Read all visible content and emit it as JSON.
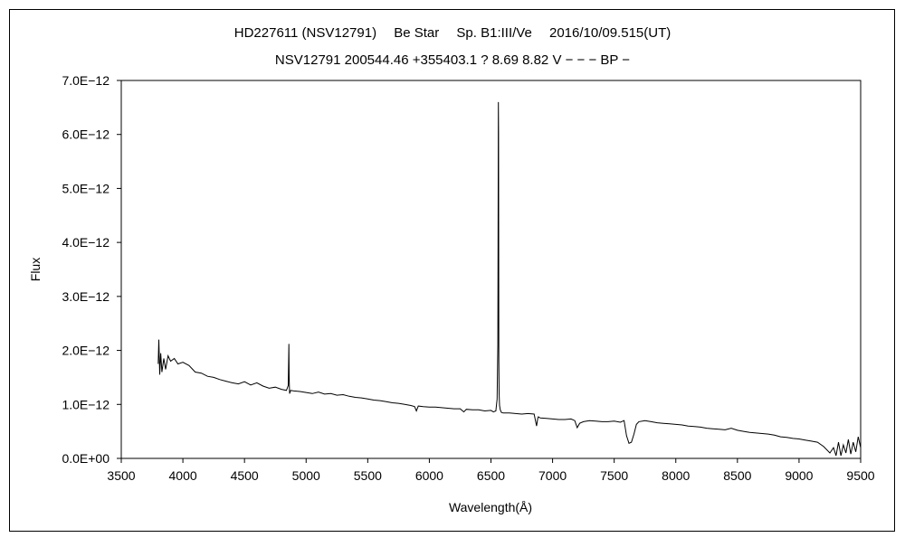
{
  "chart_data": {
    "type": "line",
    "title": "HD227611 (NSV12791)　 Be Star　 Sp. B1:III/Ve　 2016/10/09.515(UT)",
    "subtitle": "NSV12791 200544.46 +355403.1 ? 8.69 8.82 V − − − BP −",
    "xlabel": "Wavelength(Å)",
    "ylabel": "Flux",
    "xlim": [
      3500,
      9500
    ],
    "ylim": [
      0,
      7e-12
    ],
    "x_ticks": [
      3500,
      4000,
      4500,
      5000,
      5500,
      6000,
      6500,
      7000,
      7500,
      8000,
      8500,
      9000,
      9500
    ],
    "x_tick_labels": [
      "3500",
      "4000",
      "4500",
      "5000",
      "5500",
      "6000",
      "6500",
      "7000",
      "7500",
      "8000",
      "8500",
      "9000",
      "9500"
    ],
    "y_ticks": [
      0,
      1e-12,
      2e-12,
      3e-12,
      4e-12,
      5e-12,
      6e-12,
      7e-12
    ],
    "y_tick_labels": [
      "0.0E+00",
      "1.0E−12",
      "2.0E−12",
      "3.0E−12",
      "4.0E−12",
      "5.0E−12",
      "6.0E−12",
      "7.0E−12"
    ],
    "grid": false,
    "legend": "none",
    "series": [
      {
        "color": "#000000",
        "x": [
          3800,
          3805,
          3812,
          3820,
          3830,
          3845,
          3860,
          3880,
          3900,
          3930,
          3960,
          4000,
          4050,
          4100,
          4150,
          4200,
          4250,
          4300,
          4350,
          4400,
          4450,
          4500,
          4550,
          4600,
          4650,
          4700,
          4750,
          4800,
          4840,
          4855,
          4860,
          4862,
          4866,
          4875,
          4900,
          4950,
          5000,
          5050,
          5100,
          5150,
          5200,
          5250,
          5300,
          5350,
          5400,
          5450,
          5500,
          5550,
          5600,
          5650,
          5700,
          5750,
          5800,
          5850,
          5880,
          5895,
          5910,
          5950,
          6000,
          6050,
          6100,
          6150,
          6200,
          6250,
          6280,
          6300,
          6350,
          6400,
          6450,
          6500,
          6520,
          6540,
          6550,
          6556,
          6560,
          6562,
          6564,
          6566,
          6570,
          6576,
          6585,
          6600,
          6650,
          6700,
          6750,
          6800,
          6850,
          6870,
          6880,
          6885,
          6890,
          6900,
          6950,
          7000,
          7050,
          7100,
          7150,
          7180,
          7200,
          7220,
          7250,
          7300,
          7350,
          7400,
          7450,
          7500,
          7550,
          7580,
          7600,
          7620,
          7640,
          7660,
          7680,
          7700,
          7750,
          7800,
          7850,
          7900,
          7950,
          8000,
          8050,
          8100,
          8150,
          8200,
          8250,
          8300,
          8350,
          8400,
          8450,
          8500,
          8550,
          8600,
          8650,
          8700,
          8750,
          8800,
          8850,
          8900,
          8950,
          9000,
          9050,
          9100,
          9150,
          9200,
          9250,
          9280,
          9300,
          9320,
          9340,
          9360,
          9380,
          9400,
          9420,
          9440,
          9460,
          9480,
          9500
        ],
        "y": [
          1.75e-12,
          2.2e-12,
          1.55e-12,
          1.95e-12,
          1.6e-12,
          1.85e-12,
          1.65e-12,
          1.9e-12,
          1.8e-12,
          1.85e-12,
          1.75e-12,
          1.78e-12,
          1.72e-12,
          1.6e-12,
          1.58e-12,
          1.52e-12,
          1.5e-12,
          1.46e-12,
          1.43e-12,
          1.4e-12,
          1.38e-12,
          1.42e-12,
          1.36e-12,
          1.4e-12,
          1.34e-12,
          1.3e-12,
          1.32e-12,
          1.28e-12,
          1.26e-12,
          1.35e-12,
          2.12e-12,
          1.5e-12,
          1.2e-12,
          1.26e-12,
          1.25e-12,
          1.24e-12,
          1.22e-12,
          1.2e-12,
          1.23e-12,
          1.19e-12,
          1.2e-12,
          1.17e-12,
          1.18e-12,
          1.15e-12,
          1.13e-12,
          1.12e-12,
          1.1e-12,
          1.08e-12,
          1.07e-12,
          1.05e-12,
          1.03e-12,
          1.02e-12,
          1e-12,
          9.8e-13,
          9.6e-13,
          8.8e-13,
          9.7e-13,
          9.6e-13,
          9.5e-13,
          9.5e-13,
          9.4e-13,
          9.3e-13,
          9.2e-13,
          9.2e-13,
          8.6e-13,
          9.1e-13,
          9e-13,
          9e-13,
          8.8e-13,
          8.9e-13,
          8.6e-13,
          8.8e-13,
          1.1e-12,
          2.1e-12,
          6.6e-12,
          6.05e-12,
          1.8e-12,
          1.2e-12,
          9.8e-13,
          9e-13,
          8.5e-13,
          8.4e-13,
          8.4e-13,
          8.3e-13,
          8.2e-13,
          8.3e-13,
          8.2e-13,
          6e-13,
          7.4e-13,
          7.7e-13,
          7.6e-13,
          7.5e-13,
          7.4e-13,
          7.3e-13,
          7.2e-13,
          7.2e-13,
          7.3e-13,
          7e-13,
          5.7e-13,
          6.5e-13,
          6.8e-13,
          7e-13,
          6.9e-13,
          6.8e-13,
          6.8e-13,
          6.9e-13,
          6.7e-13,
          7e-13,
          4.2e-13,
          2.8e-13,
          3e-13,
          4.5e-13,
          6.3e-13,
          6.8e-13,
          7e-13,
          6.8e-13,
          6.6e-13,
          6.5e-13,
          6.4e-13,
          6.3e-13,
          6.2e-13,
          6e-13,
          5.9e-13,
          5.8e-13,
          5.6e-13,
          5.5e-13,
          5.4e-13,
          5.3e-13,
          5.6e-13,
          5.2e-13,
          5e-13,
          4.8e-13,
          4.7e-13,
          4.6e-13,
          4.5e-13,
          4.3e-13,
          4e-13,
          3.9e-13,
          3.7e-13,
          3.6e-13,
          3.4e-13,
          3.2e-13,
          3e-13,
          2.2e-13,
          1e-13,
          2e-13,
          5e-14,
          3e-13,
          5e-14,
          2.5e-13,
          1e-13,
          3.5e-13,
          8e-14,
          3e-13,
          1.2e-13,
          4e-13,
          2e-13
        ]
      }
    ]
  }
}
